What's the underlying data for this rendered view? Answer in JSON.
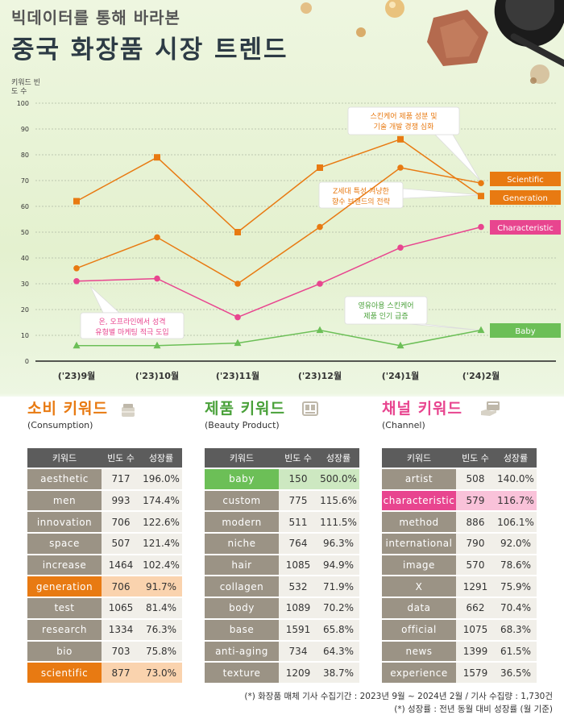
{
  "header": {
    "subtitle": "빅데이터를 통해 바라본",
    "title": "중국 화장품 시장 트렌드"
  },
  "chart_data": {
    "type": "line",
    "ylabel": "키워드 빈도 수",
    "ylim": [
      0,
      100
    ],
    "yticks": [
      0,
      10,
      20,
      30,
      40,
      50,
      60,
      70,
      80,
      90,
      100
    ],
    "categories": [
      "('23)9월",
      "('23)10월",
      "('23)11월",
      "('23)12월",
      "('24)1월",
      "('24)2월"
    ],
    "grid": true,
    "series": [
      {
        "name": "Scientific",
        "color": "#e87a12",
        "marker": "circle",
        "values": [
          36,
          48,
          30,
          52,
          75,
          69
        ]
      },
      {
        "name": "Generation",
        "color": "#e87a12",
        "marker": "square",
        "values": [
          62,
          79,
          50,
          75,
          86,
          64
        ]
      },
      {
        "name": "Characteristic",
        "color": "#e8458f",
        "marker": "circle",
        "values": [
          31,
          32,
          17,
          30,
          44,
          52
        ]
      },
      {
        "name": "Baby",
        "color": "#6cbf57",
        "marker": "triangle",
        "values": [
          6,
          6,
          7,
          12,
          6,
          12
        ]
      }
    ],
    "annotations": [
      {
        "lines": [
          "스킨케어 제품 성분 및",
          "기술 개발 경쟁 심화"
        ],
        "color": "#e87a12"
      },
      {
        "lines": [
          "Z세대 특성 겨냥한",
          "향수 브랜드의 전략"
        ],
        "color": "#e87a12"
      },
      {
        "lines": [
          "온, 오프라인에서 성격",
          "유형별 마케팅 적극 도입"
        ],
        "color": "#e8458f"
      },
      {
        "lines": [
          "영유아용 스킨케어",
          "제품 인기 급증"
        ],
        "color": "#4aa13a"
      }
    ]
  },
  "tables": [
    {
      "title": "소비 키워드",
      "subtitle": "(Consumption)",
      "color": "#e87a12",
      "icon": "cosmetic-jar-icon",
      "headers": [
        "키워드",
        "빈도 수",
        "성장률"
      ],
      "rows": [
        {
          "keyword": "aesthetic",
          "count": "717",
          "growth": "196.0%",
          "hl": ""
        },
        {
          "keyword": "men",
          "count": "993",
          "growth": "174.4%",
          "hl": ""
        },
        {
          "keyword": "innovation",
          "count": "706",
          "growth": "122.6%",
          "hl": ""
        },
        {
          "keyword": "space",
          "count": "507",
          "growth": "121.4%",
          "hl": ""
        },
        {
          "keyword": "increase",
          "count": "1464",
          "growth": "102.4%",
          "hl": ""
        },
        {
          "keyword": "generation",
          "count": "706",
          "growth": "91.7%",
          "hl": "orange"
        },
        {
          "keyword": "test",
          "count": "1065",
          "growth": "81.4%",
          "hl": ""
        },
        {
          "keyword": "research",
          "count": "1334",
          "growth": "76.3%",
          "hl": ""
        },
        {
          "keyword": "bio",
          "count": "703",
          "growth": "75.8%",
          "hl": ""
        },
        {
          "keyword": "scientific",
          "count": "877",
          "growth": "73.0%",
          "hl": "orange"
        }
      ]
    },
    {
      "title": "제품 키워드",
      "subtitle": "(Beauty Product)",
      "color": "#4aa13a",
      "icon": "product-box-icon",
      "headers": [
        "키워드",
        "빈도 수",
        "성장률"
      ],
      "rows": [
        {
          "keyword": "baby",
          "count": "150",
          "growth": "500.0%",
          "hl": "green"
        },
        {
          "keyword": "custom",
          "count": "775",
          "growth": "115.6%",
          "hl": ""
        },
        {
          "keyword": "modern",
          "count": "511",
          "growth": "111.5%",
          "hl": ""
        },
        {
          "keyword": "niche",
          "count": "764",
          "growth": "96.3%",
          "hl": ""
        },
        {
          "keyword": "hair",
          "count": "1085",
          "growth": "94.9%",
          "hl": ""
        },
        {
          "keyword": "collagen",
          "count": "532",
          "growth": "71.9%",
          "hl": ""
        },
        {
          "keyword": "body",
          "count": "1089",
          "growth": "70.2%",
          "hl": ""
        },
        {
          "keyword": "base",
          "count": "1591",
          "growth": "65.8%",
          "hl": ""
        },
        {
          "keyword": "anti-aging",
          "count": "734",
          "growth": "64.3%",
          "hl": ""
        },
        {
          "keyword": "texture",
          "count": "1209",
          "growth": "38.7%",
          "hl": ""
        }
      ]
    },
    {
      "title": "채널 키워드",
      "subtitle": "(Channel)",
      "color": "#e8458f",
      "icon": "hand-card-icon",
      "headers": [
        "키워드",
        "빈도 수",
        "성장률"
      ],
      "rows": [
        {
          "keyword": "artist",
          "count": "508",
          "growth": "140.0%",
          "hl": ""
        },
        {
          "keyword": "characteristic",
          "count": "579",
          "growth": "116.7%",
          "hl": "pink"
        },
        {
          "keyword": "method",
          "count": "886",
          "growth": "106.1%",
          "hl": ""
        },
        {
          "keyword": "international",
          "count": "790",
          "growth": "92.0%",
          "hl": ""
        },
        {
          "keyword": "image",
          "count": "570",
          "growth": "78.6%",
          "hl": ""
        },
        {
          "keyword": "X",
          "count": "1291",
          "growth": "75.9%",
          "hl": ""
        },
        {
          "keyword": "data",
          "count": "662",
          "growth": "70.4%",
          "hl": ""
        },
        {
          "keyword": "official",
          "count": "1075",
          "growth": "68.3%",
          "hl": ""
        },
        {
          "keyword": "news",
          "count": "1399",
          "growth": "61.5%",
          "hl": ""
        },
        {
          "keyword": "experience",
          "count": "1579",
          "growth": "36.5%",
          "hl": ""
        }
      ]
    }
  ],
  "footnotes": [
    "(*) 화장품 매체 기사 수집기간 : 2023년 9월 ~ 2024년 2월 / 기사 수집량 : 1,730건",
    "(*) 성장률 : 전년 동월 대비 성장률 (월 기준)"
  ]
}
